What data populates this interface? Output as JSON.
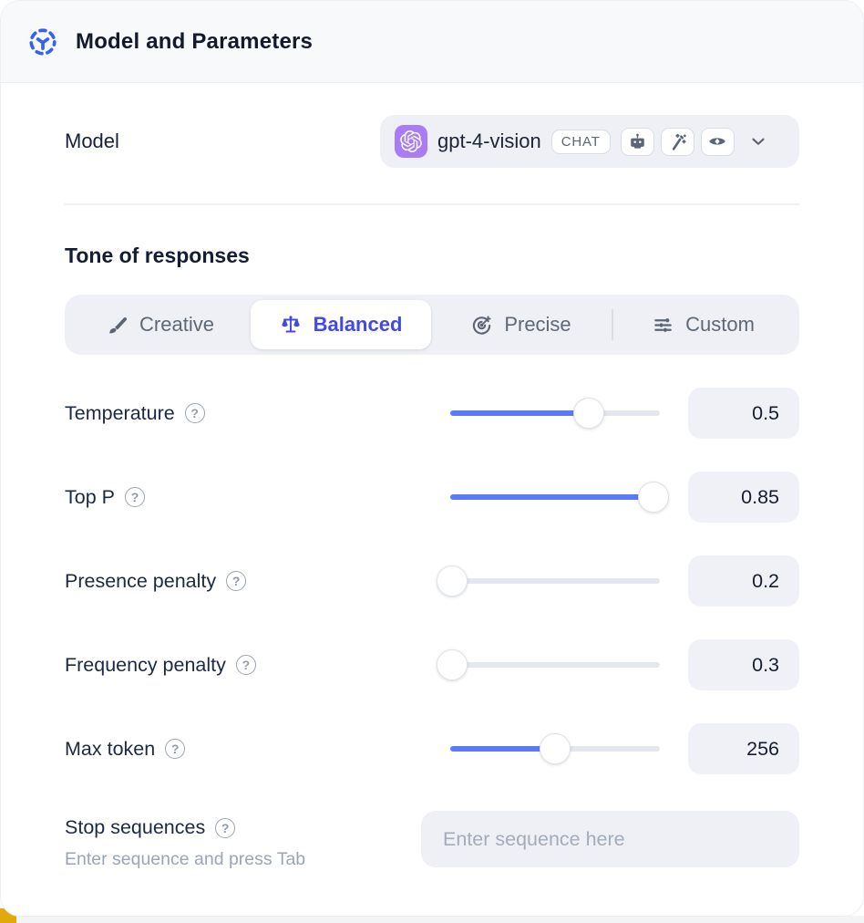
{
  "header": {
    "title": "Model and Parameters"
  },
  "model": {
    "label": "Model",
    "selected_name": "gpt-4-vision",
    "type_badge": "CHAT",
    "capability_icons": [
      "robot-icon",
      "magic-wand-icon",
      "vision-eye-icon"
    ]
  },
  "tone": {
    "label": "Tone of responses",
    "options": [
      {
        "label": "Creative",
        "icon": "paintbrush-icon",
        "selected": false
      },
      {
        "label": "Balanced",
        "icon": "balance-scale-icon",
        "selected": true
      },
      {
        "label": "Precise",
        "icon": "target-icon",
        "selected": false
      },
      {
        "label": "Custom",
        "icon": "sliders-icon",
        "selected": false
      }
    ]
  },
  "parameters": [
    {
      "label": "Temperature",
      "value": "0.5",
      "fill_pct": 66
    },
    {
      "label": "Top P",
      "value": "0.85",
      "fill_pct": 97
    },
    {
      "label": "Presence penalty",
      "value": "0.2",
      "fill_pct": 1
    },
    {
      "label": "Frequency penalty",
      "value": "0.3",
      "fill_pct": 1
    },
    {
      "label": "Max token",
      "value": "256",
      "fill_pct": 50
    }
  ],
  "stop_sequences": {
    "label": "Stop sequences",
    "hint": "Enter sequence and press Tab",
    "placeholder": "Enter sequence here"
  },
  "help_glyph": "?",
  "colors": {
    "accent_indigo": "#4348ed",
    "slider_blue": "#5b7af8",
    "openai_purple": "#a97cf5",
    "header_bg": "#f8f9fb",
    "control_bg": "#eef0f5",
    "corner_yellow": "#e2a90c"
  }
}
